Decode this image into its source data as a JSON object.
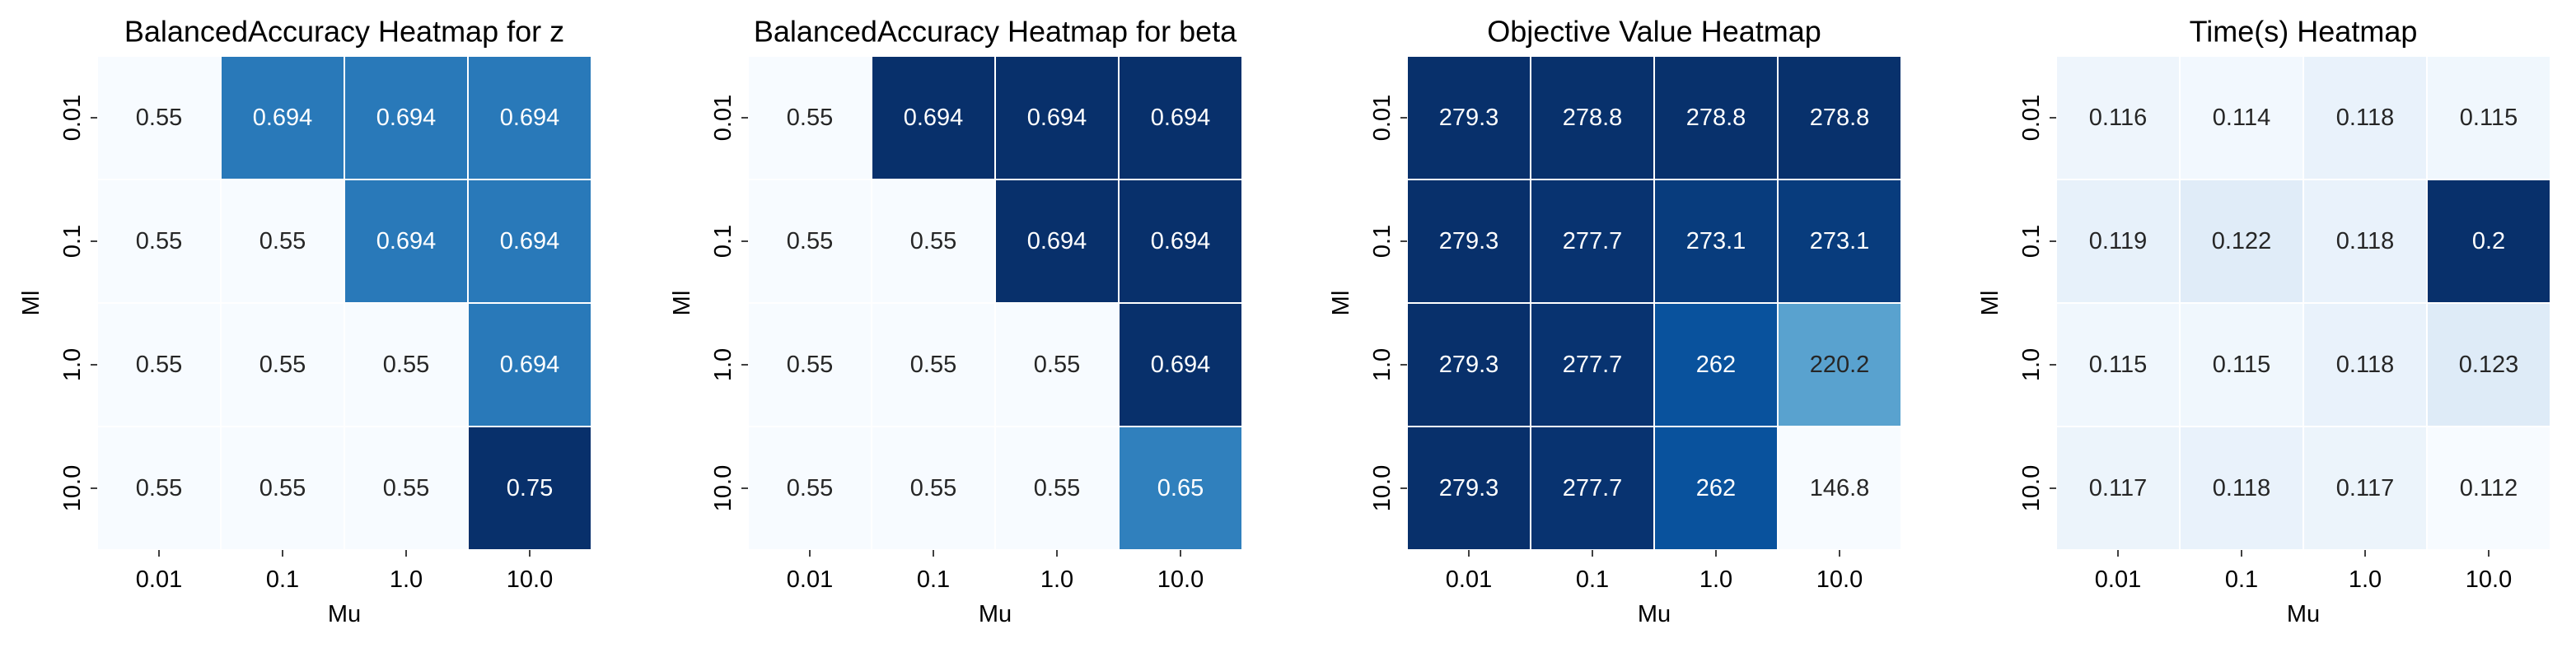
{
  "chart_data": [
    {
      "type": "heatmap",
      "title": "BalancedAccuracy Heatmap for z",
      "xlabel": "Mu",
      "ylabel": "Ml",
      "x_categories": [
        "0.01",
        "0.1",
        "1.0",
        "10.0"
      ],
      "y_categories": [
        "0.01",
        "0.1",
        "1.0",
        "10.0"
      ],
      "values": [
        [
          0.55,
          0.694,
          0.694,
          0.694
        ],
        [
          0.55,
          0.55,
          0.694,
          0.694
        ],
        [
          0.55,
          0.55,
          0.55,
          0.694
        ],
        [
          0.55,
          0.55,
          0.55,
          0.75
        ]
      ],
      "colormap": "Blues",
      "colorbar": false
    },
    {
      "type": "heatmap",
      "title": "BalancedAccuracy Heatmap for beta",
      "xlabel": "Mu",
      "ylabel": "Ml",
      "x_categories": [
        "0.01",
        "0.1",
        "1.0",
        "10.0"
      ],
      "y_categories": [
        "0.01",
        "0.1",
        "1.0",
        "10.0"
      ],
      "values": [
        [
          0.55,
          0.694,
          0.694,
          0.694
        ],
        [
          0.55,
          0.55,
          0.694,
          0.694
        ],
        [
          0.55,
          0.55,
          0.55,
          0.694
        ],
        [
          0.55,
          0.55,
          0.55,
          0.65
        ]
      ],
      "colormap": "Blues",
      "colorbar": false
    },
    {
      "type": "heatmap",
      "title": "Objective Value Heatmap",
      "xlabel": "Mu",
      "ylabel": "Ml",
      "x_categories": [
        "0.01",
        "0.1",
        "1.0",
        "10.0"
      ],
      "y_categories": [
        "0.01",
        "0.1",
        "1.0",
        "10.0"
      ],
      "values": [
        [
          279.3,
          278.8,
          278.8,
          278.8
        ],
        [
          279.3,
          277.7,
          273.1,
          273.1
        ],
        [
          279.3,
          277.7,
          262,
          220.2
        ],
        [
          279.3,
          277.7,
          262,
          146.8
        ]
      ],
      "colormap": "Blues",
      "colorbar": false
    },
    {
      "type": "heatmap",
      "title": "Time(s) Heatmap",
      "xlabel": "Mu",
      "ylabel": "Ml",
      "x_categories": [
        "0.01",
        "0.1",
        "1.0",
        "10.0"
      ],
      "y_categories": [
        "0.01",
        "0.1",
        "1.0",
        "10.0"
      ],
      "values": [
        [
          0.116,
          0.114,
          0.118,
          0.115
        ],
        [
          0.119,
          0.122,
          0.118,
          0.2
        ],
        [
          0.115,
          0.115,
          0.118,
          0.123
        ],
        [
          0.117,
          0.118,
          0.117,
          0.112
        ]
      ],
      "colormap": "Blues",
      "colorbar": false
    }
  ]
}
